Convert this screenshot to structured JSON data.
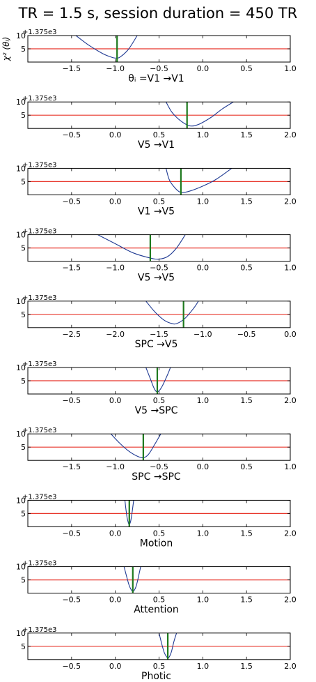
{
  "title": "TR = 1.5 s, session duration = 450 TR",
  "ylabel": "χ² (θᵢ)",
  "colors": {
    "curve": "#1f3a93",
    "threshold": "#e8352a",
    "estimate": "#1e7a1e",
    "axes": "#000000"
  },
  "chart_data": [
    {
      "type": "line",
      "xlabel": "θᵢ =V1 →V1",
      "offset_label": "+1.375e3",
      "xlim": [
        -2.0,
        1.0
      ],
      "xticks": [
        -1.5,
        -1.0,
        -0.5,
        0.0,
        0.5,
        1.0
      ],
      "tick_labels": [
        "−1.5",
        "−1.0",
        "−0.5",
        "0.0",
        "0.5",
        "1.0"
      ],
      "ylim": [
        0,
        10
      ],
      "yticks": [
        5,
        10
      ],
      "threshold": 5,
      "estimate": -0.98,
      "curve": {
        "x": [
          -1.45,
          -1.3,
          -1.15,
          -1.05,
          -1.0,
          -0.95,
          -0.85,
          -0.75
        ],
        "y": [
          10,
          6.3,
          3.3,
          1.9,
          1.5,
          1.8,
          4.8,
          10
        ]
      }
    },
    {
      "type": "line",
      "xlabel": "V5 →V1",
      "offset_label": "+1.375e3",
      "xlim": [
        -1.0,
        2.0
      ],
      "xticks": [
        -0.5,
        0.0,
        0.5,
        1.0,
        1.5,
        2.0
      ],
      "tick_labels": [
        "−0.5",
        "0.0",
        "0.5",
        "1.0",
        "1.5",
        "2.0"
      ],
      "ylim": [
        0,
        10
      ],
      "yticks": [
        5,
        10
      ],
      "threshold": 5,
      "estimate": 0.82,
      "curve": {
        "x": [
          0.58,
          0.65,
          0.75,
          0.85,
          0.95,
          1.1,
          1.22,
          1.35
        ],
        "y": [
          10,
          6.0,
          2.8,
          1.0,
          1.5,
          4.3,
          7.3,
          10
        ]
      }
    },
    {
      "type": "line",
      "xlabel": "V1 →V5",
      "offset_label": "+1.375e3",
      "xlim": [
        -1.0,
        2.0
      ],
      "xticks": [
        -0.5,
        0.0,
        0.5,
        1.0,
        1.5,
        2.0
      ],
      "tick_labels": [
        "−0.5",
        "0.0",
        "0.5",
        "1.0",
        "1.5",
        "2.0"
      ],
      "ylim": [
        0,
        10
      ],
      "yticks": [
        5,
        10
      ],
      "threshold": 5,
      "estimate": 0.75,
      "curve": {
        "x": [
          0.58,
          0.62,
          0.7,
          0.76,
          0.85,
          1.0,
          1.15,
          1.33
        ],
        "y": [
          10,
          5.5,
          2.0,
          0.9,
          1.4,
          3.3,
          5.8,
          10
        ]
      }
    },
    {
      "type": "line",
      "xlabel": "V5 →V5",
      "offset_label": "+1.375e3",
      "xlim": [
        -2.0,
        1.0
      ],
      "xticks": [
        -1.5,
        -1.0,
        -0.5,
        0.0,
        0.5,
        1.0
      ],
      "tick_labels": [
        "−1.5",
        "−1.0",
        "−0.5",
        "0.0",
        "0.5",
        "1.0"
      ],
      "ylim": [
        0,
        10
      ],
      "yticks": [
        5,
        10
      ],
      "threshold": 5,
      "estimate": -0.6,
      "curve": {
        "x": [
          -1.2,
          -1.0,
          -0.8,
          -0.6,
          -0.5,
          -0.4,
          -0.3,
          -0.2
        ],
        "y": [
          10,
          6.6,
          3.2,
          1.2,
          0.8,
          1.8,
          5.0,
          10
        ]
      }
    },
    {
      "type": "line",
      "xlabel": "SPC →V5",
      "offset_label": "+1.375e3",
      "xlim": [
        -3.0,
        0.0
      ],
      "xticks": [
        -2.5,
        -2.0,
        -1.5,
        -1.0,
        -0.5,
        0.0
      ],
      "tick_labels": [
        "−2.5",
        "−2.0",
        "−1.5",
        "−1.0",
        "−0.5",
        "0.0"
      ],
      "ylim": [
        0,
        10
      ],
      "yticks": [
        5,
        10
      ],
      "threshold": 5,
      "estimate": -1.22,
      "curve": {
        "x": [
          -1.65,
          -1.55,
          -1.45,
          -1.37,
          -1.3,
          -1.2,
          -1.1,
          -1.05
        ],
        "y": [
          10,
          6.0,
          3.0,
          1.7,
          1.5,
          3.6,
          7.5,
          10
        ]
      }
    },
    {
      "type": "line",
      "xlabel": "V5 →SPC",
      "offset_label": "+1.375e3",
      "xlim": [
        -1.0,
        2.0
      ],
      "xticks": [
        -0.5,
        0.0,
        0.5,
        1.0,
        1.5,
        2.0
      ],
      "tick_labels": [
        "−0.5",
        "0.0",
        "0.5",
        "1.0",
        "1.5",
        "2.0"
      ],
      "ylim": [
        0,
        10
      ],
      "yticks": [
        5,
        10
      ],
      "threshold": 5,
      "estimate": 0.48,
      "curve": {
        "x": [
          0.35,
          0.4,
          0.44,
          0.47,
          0.5,
          0.54,
          0.6,
          0.63
        ],
        "y": [
          10,
          5.8,
          2.4,
          0.9,
          1.2,
          3.2,
          7.5,
          10
        ]
      }
    },
    {
      "type": "line",
      "xlabel": "SPC →SPC",
      "offset_label": "+1.375e3",
      "xlim": [
        -2.0,
        1.0
      ],
      "xticks": [
        -1.5,
        -1.0,
        -0.5,
        0.0,
        0.5,
        1.0
      ],
      "tick_labels": [
        "−1.5",
        "−1.0",
        "−0.5",
        "0.0",
        "0.5",
        "1.0"
      ],
      "ylim": [
        0,
        10
      ],
      "yticks": [
        5,
        10
      ],
      "threshold": 5,
      "estimate": -0.68,
      "curve": {
        "x": [
          -1.05,
          -0.95,
          -0.85,
          -0.75,
          -0.68,
          -0.62,
          -0.55,
          -0.48
        ],
        "y": [
          10,
          6.5,
          3.6,
          1.6,
          1.0,
          2.3,
          6.0,
          10
        ]
      }
    },
    {
      "type": "line",
      "xlabel": "Motion",
      "offset_label": "+1.375e3",
      "xlim": [
        -1.0,
        2.0
      ],
      "xticks": [
        -0.5,
        0.0,
        0.5,
        1.0,
        1.5,
        2.0
      ],
      "tick_labels": [
        "−0.5",
        "0.0",
        "0.5",
        "1.0",
        "1.5",
        "2.0"
      ],
      "ylim": [
        0,
        10
      ],
      "yticks": [
        5,
        10
      ],
      "threshold": 5,
      "estimate": 0.16,
      "curve": {
        "x": [
          0.11,
          0.12,
          0.135,
          0.15,
          0.16,
          0.175,
          0.19,
          0.21
        ],
        "y": [
          10,
          7.0,
          3.4,
          1.4,
          0.9,
          2.0,
          5.0,
          10
        ]
      }
    },
    {
      "type": "line",
      "xlabel": "Attention",
      "offset_label": "+1.375e3",
      "xlim": [
        -1.0,
        2.0
      ],
      "xticks": [
        -0.5,
        0.0,
        0.5,
        1.0,
        1.5,
        2.0
      ],
      "tick_labels": [
        "−0.5",
        "0.0",
        "0.5",
        "1.0",
        "1.5",
        "2.0"
      ],
      "ylim": [
        0,
        10
      ],
      "yticks": [
        5,
        10
      ],
      "threshold": 5,
      "estimate": 0.2,
      "curve": {
        "x": [
          0.1,
          0.13,
          0.16,
          0.19,
          0.21,
          0.24,
          0.27,
          0.29
        ],
        "y": [
          10,
          6.2,
          2.8,
          0.9,
          0.8,
          2.8,
          7.0,
          10
        ]
      }
    },
    {
      "type": "line",
      "xlabel": "Photic",
      "offset_label": "+1.375e3",
      "xlim": [
        -1.0,
        2.0
      ],
      "xticks": [
        -0.5,
        0.0,
        0.5,
        1.0,
        1.5,
        2.0
      ],
      "tick_labels": [
        "−0.5",
        "0.0",
        "0.5",
        "1.0",
        "1.5",
        "2.0"
      ],
      "ylim": [
        0,
        10
      ],
      "yticks": [
        5,
        10
      ],
      "threshold": 5,
      "estimate": 0.6,
      "curve": {
        "x": [
          0.5,
          0.53,
          0.56,
          0.59,
          0.61,
          0.64,
          0.67,
          0.7
        ],
        "y": [
          10,
          6.0,
          2.6,
          0.9,
          0.7,
          2.8,
          6.8,
          10
        ]
      }
    }
  ]
}
